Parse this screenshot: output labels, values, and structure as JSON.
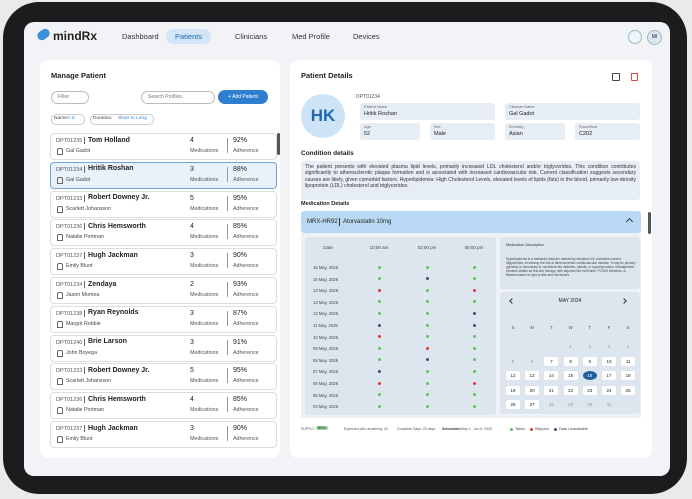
{
  "nav": {
    "brand": "mindRx",
    "items": [
      "Dashboard",
      "Patients",
      "Clinicians",
      "Med Profile",
      "Devices"
    ],
    "active": 1,
    "avatar": "MI"
  },
  "manage": {
    "title": "Manage Patient",
    "filter": "Filter",
    "search": "Search Profiles..",
    "add": "+ Add Patient",
    "sorts": [
      {
        "label": "Name:",
        "value": "A-Z"
      },
      {
        "label": "Duration:",
        "value": "Short to Long"
      }
    ],
    "medications_label": "Medications",
    "adherence_label": "Adherence",
    "selected": 1,
    "patients": [
      {
        "id": "DPT01235",
        "name": "Tom Holland",
        "clinician": "Gal Gadot",
        "meds": "4",
        "adherence": "92%"
      },
      {
        "id": "DPT01234",
        "name": "Hritik Roshan",
        "clinician": "Gal Gadot",
        "meds": "3",
        "adherence": "88%"
      },
      {
        "id": "DPT01233",
        "name": "Robert Downey Jr.",
        "clinician": "Scarlett Johansson",
        "meds": "5",
        "adherence": "95%"
      },
      {
        "id": "DPT01236",
        "name": "Chris Hemsworth",
        "clinician": "Natalie Portman",
        "meds": "4",
        "adherence": "85%"
      },
      {
        "id": "DPT01237",
        "name": "Hugh Jackman",
        "clinician": "Emily Blunt",
        "meds": "3",
        "adherence": "90%"
      },
      {
        "id": "DPT01234",
        "name": "Zendaya",
        "clinician": "Jason Momoa",
        "meds": "2",
        "adherence": "93%"
      },
      {
        "id": "DPT01238",
        "name": "Ryan Reynolds",
        "clinician": "Margot Robbie",
        "meds": "3",
        "adherence": "87%"
      },
      {
        "id": "DPT01240",
        "name": "Brie Larson",
        "clinician": "John Boyega",
        "meds": "3",
        "adherence": "91%"
      },
      {
        "id": "DPT01233",
        "name": "Robert Downey Jr.",
        "clinician": "Scarlett Johansson",
        "meds": "5",
        "adherence": "95%"
      },
      {
        "id": "DPT01236",
        "name": "Chris Hemsworth",
        "clinician": "Natalie Portman",
        "meds": "4",
        "adherence": "85%"
      },
      {
        "id": "DPT01237",
        "name": "Hugh Jackman",
        "clinician": "Emily Blunt",
        "meds": "3",
        "adherence": "90%"
      }
    ]
  },
  "details": {
    "title": "Patient Details",
    "initials": "HK",
    "id": "DPT01234",
    "fields": [
      {
        "label": "Patient Name",
        "value": "Hritik Roshan"
      },
      {
        "label": "Clinician Name",
        "value": "Gal Gadot"
      },
      {
        "label": "Age",
        "value": "52"
      },
      {
        "label": "Sex",
        "value": "Male"
      },
      {
        "label": "Ethnicity",
        "value": "Asian"
      },
      {
        "label": "Room/Bed",
        "value": "C202"
      }
    ],
    "condition_title": "Condition details",
    "condition_text": "The patient presents with elevated plasma lipid levels, primarily increased LDL cholesterol and/or triglycerides. This condition contributes significantly to atherosclerotic plaque formation and is associated with increased cardiovascular risk. Current classification suggests secondary causes are likely, given comorbid factors. Hyperlipidemia: High Cholesterol Levels, elevated levels of lipids (fats) in the blood, primarily low-density lipoprotein (LDL) cholesterol and triglycerides.",
    "medication_title": "Medication Details",
    "med_code": "MRX-HR92",
    "med_name": "Atorvastatin 10mg",
    "columns": [
      "Date",
      "10:00 am",
      "02:00 pm",
      "08:00 pm"
    ],
    "rows": [
      {
        "date": "16 May, 2025",
        "doses": [
          "Taken",
          "Taken",
          "Taken"
        ]
      },
      {
        "date": "15 May, 2025",
        "doses": [
          "Taken",
          "Data Unavailable",
          "Taken"
        ]
      },
      {
        "date": "14 May, 2025",
        "doses": [
          "Skipped",
          "Taken",
          "Skipped"
        ]
      },
      {
        "date": "13 May, 2025",
        "doses": [
          "Taken",
          "Taken",
          "Taken"
        ]
      },
      {
        "date": "12 May, 2025",
        "doses": [
          "Taken",
          "Taken",
          "Data Unavailable"
        ]
      },
      {
        "date": "11 May, 2025",
        "doses": [
          "Data Unavailable",
          "Taken",
          "Data Unavailable"
        ]
      },
      {
        "date": "10 May, 2025",
        "doses": [
          "Skipped",
          "Taken",
          "Taken"
        ]
      },
      {
        "date": "09 May, 2025",
        "doses": [
          "Taken",
          "Skipped",
          "Taken"
        ]
      },
      {
        "date": "08 May, 2025",
        "doses": [
          "Taken",
          "Data Unavailable",
          "Taken"
        ]
      },
      {
        "date": "07 May, 2025",
        "doses": [
          "Data Unavailable",
          "Taken",
          "Taken"
        ]
      },
      {
        "date": "06 May, 2025",
        "doses": [
          "Skipped",
          "Taken",
          "Skipped"
        ]
      },
      {
        "date": "05 May, 2025",
        "doses": [
          "Taken",
          "Taken",
          "Taken"
        ]
      },
      {
        "date": "04 May, 2025",
        "doses": [
          "Taken",
          "Taken",
          "Taken"
        ]
      }
    ],
    "description_title": "Medication Description",
    "description_text": "Hyperlipidemia is a metabolic disorder marked by elevated LDL cholesterol and/or triglycerides, increasing the risk of atherosclerotic cardiovascular disease. It may be primary (genetic) or secondary to conditions like diabetes, obesity, or hypothyroidism. Management includes statins as first-line therapy, with adjuncts like ezetimibe, PCSK9 inhibitors, or fibrates based on lipid profile and risk factors.",
    "calendar": {
      "month": "MAY 2024",
      "weekdays": [
        "S",
        "M",
        "T",
        "W",
        "T",
        "F",
        "S"
      ],
      "selected": 16,
      "faded": [
        1,
        2,
        3,
        4,
        5,
        6,
        28,
        29,
        30,
        31
      ],
      "weeks": [
        [
          null,
          null,
          null,
          1,
          2,
          3,
          4
        ],
        [
          5,
          6,
          7,
          8,
          9,
          10,
          11
        ],
        [
          12,
          13,
          14,
          15,
          16,
          17,
          18
        ],
        [
          19,
          20,
          21,
          22,
          23,
          24,
          25
        ],
        [
          26,
          27,
          28,
          29,
          30,
          31,
          null
        ]
      ]
    },
    "footer": {
      "supply_label": "SUPPLY",
      "supply": "80%",
      "remaining": "Expected pills remaining: 24",
      "complete": "Complete Days: 20 days",
      "scheduled_label": "Scheduled:",
      "scheduled": "May 4 - Jun 6, 2025"
    },
    "legend": [
      {
        "name": "Taken",
        "color": "#5cc35c"
      },
      {
        "name": "Skipped",
        "color": "#e53935"
      },
      {
        "name": "Data Unavailable",
        "color": "#3f4f7a"
      }
    ]
  }
}
